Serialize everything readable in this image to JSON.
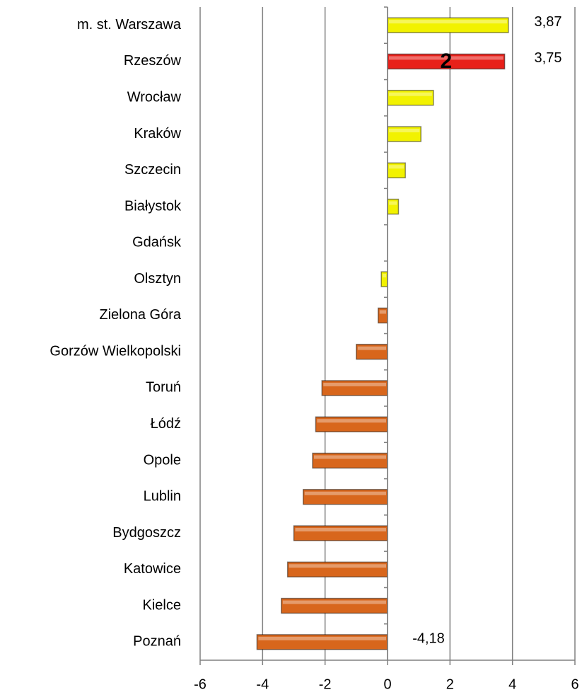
{
  "chart_data": {
    "type": "hbar",
    "categories": [
      "m. st. Warszawa",
      "Rzeszów",
      "Wrocław",
      "Kraków",
      "Szczecin",
      "Białystok",
      "Gdańsk",
      "Olsztyn",
      "Zielona Góra",
      "Gorzów Wielkopolski",
      "Toruń",
      "Łódź",
      "Opole",
      "Lublin",
      "Bydgoszcz",
      "Katowice",
      "Kielce",
      "Poznań"
    ],
    "values": [
      3.87,
      3.75,
      1.47,
      1.07,
      0.57,
      0.35,
      0,
      -0.2,
      -0.3,
      -1.0,
      -2.1,
      -2.3,
      -2.4,
      -2.7,
      -3.0,
      -3.2,
      -3.4,
      -4.18
    ],
    "value_labels": [
      "3,87",
      "3,75",
      null,
      null,
      null,
      null,
      null,
      null,
      null,
      null,
      null,
      null,
      null,
      null,
      null,
      null,
      null,
      "-4,18"
    ],
    "colors": [
      "#f2f200",
      "#e8201a",
      "#f2f200",
      "#f2f200",
      "#f2f200",
      "#f2f200",
      "#f2f200",
      "#f2f200",
      "#d8661c",
      "#d8661c",
      "#d8661c",
      "#d8661c",
      "#d8661c",
      "#d8661c",
      "#d8661c",
      "#d8661c",
      "#d8661c",
      "#d8661c"
    ],
    "annotation": "2",
    "xlim": [
      -6,
      6
    ],
    "xticks": [
      -6,
      -4,
      -2,
      0,
      2,
      4,
      6
    ],
    "grid": true
  }
}
